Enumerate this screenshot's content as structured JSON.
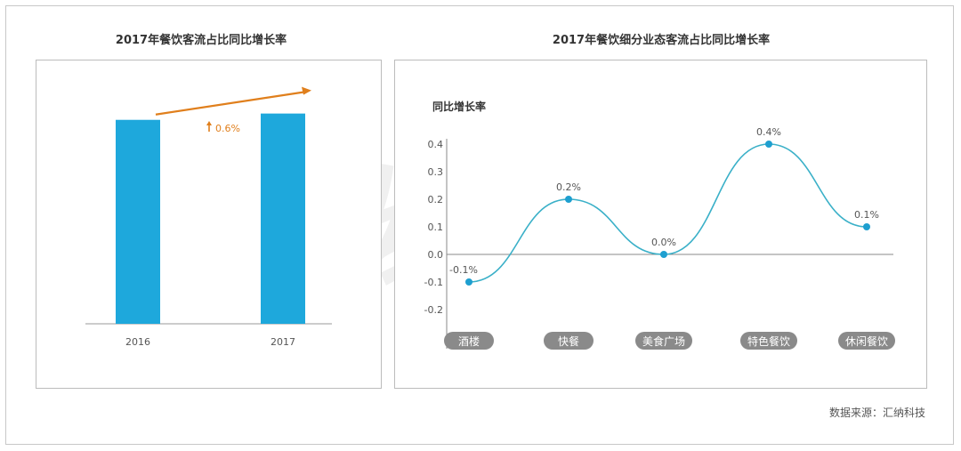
{
  "chart_data": [
    {
      "type": "bar",
      "title": "2017年餐饮客流占比同比增长率",
      "categories": [
        "2016",
        "2017"
      ],
      "values": [
        97,
        100
      ],
      "ylim": [
        0,
        110
      ],
      "annotation": "0.6%",
      "colors": {
        "bar": "#1ea8dc",
        "arrow": "#e07f1c"
      }
    },
    {
      "type": "line",
      "title": "2017年餐饮细分业态客流占比同比增长率",
      "ylabel": "同比增长率",
      "categories": [
        "酒楼",
        "快餐",
        "美食广场",
        "特色餐饮",
        "休闲餐饮"
      ],
      "values": [
        -0.1,
        0.2,
        0.0,
        0.4,
        0.1
      ],
      "data_labels": [
        "-0.1%",
        "0.2%",
        "0.0%",
        "0.4%",
        "0.1%"
      ],
      "yticks": [
        "0.4",
        "0.3",
        "0.2",
        "0.1",
        "0.0",
        "-0.1",
        "-0.2"
      ],
      "ylim": [
        -0.2,
        0.4
      ],
      "colors": {
        "line": "#3ab0c8",
        "point": "#1e9fd0",
        "pill": "#8a8a8a"
      }
    }
  ],
  "watermark": "汇纳科技",
  "source": "数据来源：汇纳科技"
}
